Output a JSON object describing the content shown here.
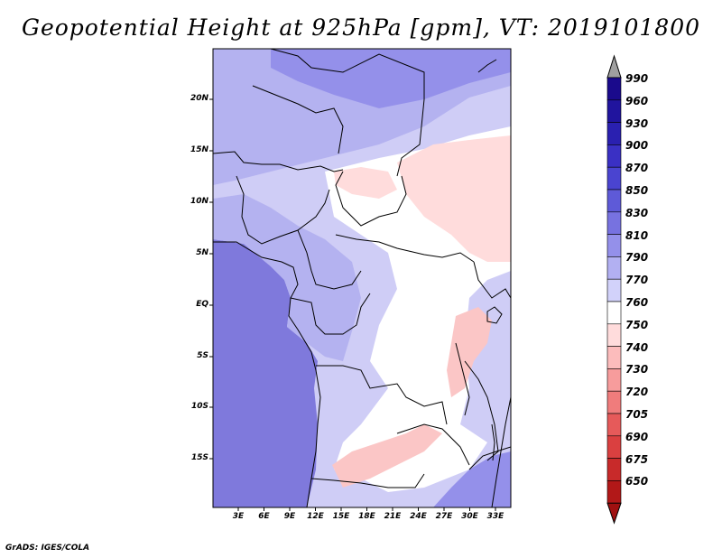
{
  "title": "Geopotential Height at 925hPa [gpm], VT: 2019101800",
  "footer": "GrADS: IGES/COLA",
  "map": {
    "lat_labels": [
      "20N",
      "15N",
      "10N",
      "5N",
      "EQ",
      "5S",
      "10S",
      "15S"
    ],
    "lon_labels": [
      "3E",
      "6E",
      "9E",
      "12E",
      "15E",
      "18E",
      "21E",
      "24E",
      "27E",
      "30E",
      "33E"
    ]
  },
  "colorbar": {
    "levels": [
      "990",
      "960",
      "930",
      "900",
      "870",
      "850",
      "830",
      "810",
      "790",
      "770",
      "760",
      "750",
      "740",
      "730",
      "720",
      "705",
      "690",
      "675",
      "650"
    ],
    "colors": [
      "#1a0a8c",
      "#20149e",
      "#2a20b0",
      "#3a30c4",
      "#4a44d0",
      "#5e5ad8",
      "#7772e0",
      "#9490ea",
      "#b2b0f2",
      "#d2d2fa",
      "#ffffff",
      "#ffdcdc",
      "#fcbcbc",
      "#f79c9c",
      "#f07c7c",
      "#e65a5a",
      "#da4040",
      "#c82a2a",
      "#b21818"
    ],
    "over_color": "#a0a0a0",
    "under_color": "#a01010"
  },
  "colors": {
    "ocean": "#7f79dc",
    "land_base": "#cfcdf6",
    "sahara_blue": "#b4b2f0",
    "north_deep": "#9490ea",
    "low_white": "#ffffff",
    "low_pink": "#ffdcdc",
    "low_pink2": "#fbc6c6",
    "border": "#000000"
  }
}
